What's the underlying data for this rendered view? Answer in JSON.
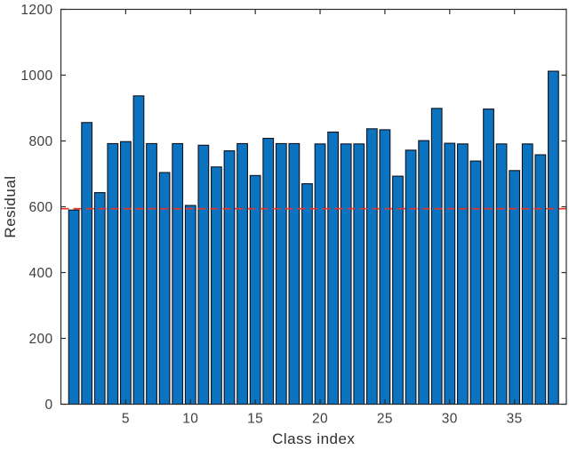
{
  "chart_data": {
    "type": "bar",
    "title": "",
    "xlabel": "Class index",
    "ylabel": "Residual",
    "categories": [
      1,
      2,
      3,
      4,
      5,
      6,
      7,
      8,
      9,
      10,
      11,
      12,
      13,
      14,
      15,
      16,
      17,
      18,
      19,
      20,
      21,
      22,
      23,
      24,
      25,
      26,
      27,
      28,
      29,
      30,
      31,
      32,
      33,
      34,
      35,
      36,
      37,
      38
    ],
    "values": [
      590,
      856,
      643,
      792,
      798,
      937,
      792,
      704,
      792,
      604,
      787,
      721,
      770,
      792,
      695,
      808,
      792,
      792,
      670,
      791,
      827,
      791,
      791,
      837,
      834,
      693,
      772,
      801,
      899,
      793,
      791,
      739,
      897,
      791,
      710,
      791,
      758,
      1012
    ],
    "xticks": [
      5,
      10,
      15,
      20,
      25,
      30,
      35
    ],
    "yticks": [
      0,
      200,
      400,
      600,
      800,
      1000,
      1200
    ],
    "xlim": [
      0,
      39
    ],
    "ylim": [
      0,
      1200
    ],
    "grid": false,
    "legend": "none",
    "bar_width_fraction": 0.8,
    "threshold_line": {
      "value": 594,
      "style": "dashed"
    },
    "colors": {
      "bar_fill": "#0b73c0",
      "bar_edge": "#10121c",
      "axis": "#2b2b2b",
      "tick_label": "#404040",
      "axis_label": "#2e2e2e",
      "threshold": "#ec3323",
      "background": "#ffffff"
    }
  }
}
